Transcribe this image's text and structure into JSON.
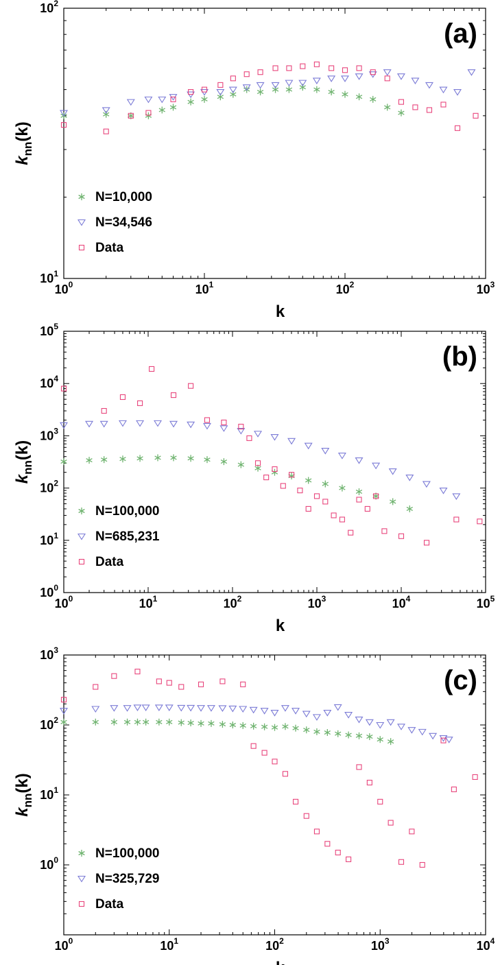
{
  "figure": {
    "ylabel_main": "k",
    "ylabel_sub": "nn",
    "ylabel_tail": "(k)",
    "xlabel": "k",
    "marker_colors": {
      "star": "#6fb36f",
      "triangle": "#7b7bd6",
      "square": "#e8457c"
    }
  },
  "chart_data": [
    {
      "type": "scatter",
      "panel_label": "(a)",
      "xscale": "log",
      "yscale": "log",
      "xlim": [
        1,
        1000
      ],
      "ylim": [
        10,
        100
      ],
      "x_ticks": [
        {
          "base": "10",
          "exp": "0",
          "v": 1
        },
        {
          "base": "10",
          "exp": "1",
          "v": 10
        },
        {
          "base": "10",
          "exp": "2",
          "v": 100
        },
        {
          "base": "10",
          "exp": "3",
          "v": 1000
        }
      ],
      "y_ticks": [
        {
          "base": "10",
          "exp": "1",
          "v": 10
        },
        {
          "base": "10",
          "exp": "2",
          "v": 100
        }
      ],
      "xlabel": "k",
      "legend_position": "lower-left",
      "series": [
        {
          "name": "N=10,000",
          "marker": "star",
          "color": "#6fb36f",
          "x": [
            1,
            2,
            3,
            4,
            5,
            6,
            8,
            10,
            13,
            16,
            20,
            25,
            32,
            40,
            50,
            63,
            80,
            100,
            126,
            158,
            200,
            251
          ],
          "y": [
            40,
            40.5,
            40,
            40,
            42,
            43,
            45,
            46,
            47,
            48,
            50,
            49,
            50,
            50,
            51,
            50,
            49,
            48,
            47,
            46,
            43,
            41
          ]
        },
        {
          "name": "N=34,546",
          "marker": "triangle",
          "color": "#7b7bd6",
          "x": [
            1,
            2,
            3,
            4,
            5,
            6,
            8,
            10,
            13,
            16,
            20,
            25,
            32,
            40,
            50,
            63,
            80,
            100,
            126,
            158,
            200,
            251,
            316,
            398,
            501,
            631,
            794
          ],
          "y": [
            41,
            42,
            45,
            46,
            46,
            47,
            48,
            49,
            49,
            50,
            51,
            52,
            52,
            53,
            53,
            54,
            55,
            55,
            56,
            57,
            58,
            56,
            54,
            52,
            50,
            49,
            58
          ]
        },
        {
          "name": "Data",
          "marker": "square",
          "color": "#e8457c",
          "x": [
            1,
            2,
            3,
            4,
            6,
            8,
            10,
            13,
            16,
            20,
            25,
            32,
            40,
            50,
            63,
            80,
            100,
            126,
            158,
            200,
            251,
            316,
            398,
            501,
            631,
            850
          ],
          "y": [
            37,
            35,
            40,
            41,
            46,
            49,
            50,
            52,
            55,
            57,
            58,
            60,
            60,
            61,
            62,
            60,
            59,
            60,
            58,
            55,
            45,
            43,
            42,
            44,
            36,
            40
          ]
        }
      ]
    },
    {
      "type": "scatter",
      "panel_label": "(b)",
      "xscale": "log",
      "yscale": "log",
      "xlim": [
        1,
        100000
      ],
      "ylim": [
        1,
        100000
      ],
      "x_ticks": [
        {
          "base": "10",
          "exp": "0",
          "v": 1
        },
        {
          "base": "10",
          "exp": "1",
          "v": 10
        },
        {
          "base": "10",
          "exp": "2",
          "v": 100
        },
        {
          "base": "10",
          "exp": "3",
          "v": 1000
        },
        {
          "base": "10",
          "exp": "4",
          "v": 10000
        },
        {
          "base": "10",
          "exp": "5",
          "v": 100000
        }
      ],
      "y_ticks": [
        {
          "base": "10",
          "exp": "0",
          "v": 1
        },
        {
          "base": "10",
          "exp": "1",
          "v": 10
        },
        {
          "base": "10",
          "exp": "2",
          "v": 100
        },
        {
          "base": "10",
          "exp": "3",
          "v": 1000
        },
        {
          "base": "10",
          "exp": "4",
          "v": 10000
        },
        {
          "base": "10",
          "exp": "5",
          "v": 100000
        }
      ],
      "xlabel": "k",
      "legend_position": "lower-left",
      "series": [
        {
          "name": "N=100,000",
          "marker": "star",
          "color": "#6fb36f",
          "x": [
            1,
            2,
            3,
            5,
            8,
            13,
            20,
            32,
            50,
            79,
            126,
            200,
            316,
            501,
            794,
            1259,
            1995,
            3162,
            5012,
            7943,
            12589
          ],
          "y": [
            320,
            340,
            350,
            360,
            370,
            380,
            380,
            370,
            350,
            320,
            280,
            240,
            200,
            170,
            140,
            120,
            100,
            85,
            70,
            55,
            40
          ]
        },
        {
          "name": "N=685,231",
          "marker": "triangle",
          "color": "#7b7bd6",
          "x": [
            1,
            2,
            3,
            5,
            8,
            13,
            20,
            32,
            50,
            79,
            126,
            200,
            316,
            501,
            794,
            1259,
            1995,
            3162,
            5012,
            7943,
            12589,
            19953,
            31623,
            45000
          ],
          "y": [
            1600,
            1700,
            1700,
            1750,
            1750,
            1750,
            1700,
            1650,
            1550,
            1400,
            1250,
            1100,
            950,
            800,
            650,
            520,
            420,
            340,
            270,
            210,
            160,
            120,
            90,
            70
          ]
        },
        {
          "name": "Data",
          "marker": "square",
          "color": "#e8457c",
          "x": [
            1,
            3,
            5,
            8,
            11,
            20,
            32,
            50,
            79,
            126,
            158,
            200,
            251,
            316,
            398,
            501,
            631,
            794,
            1000,
            1259,
            1585,
            1995,
            2512,
            3162,
            3981,
            5012,
            6310,
            10000,
            20000,
            45000,
            85000
          ],
          "y": [
            8000,
            3000,
            5500,
            4200,
            19000,
            6000,
            9000,
            2000,
            1800,
            1500,
            900,
            300,
            160,
            230,
            110,
            180,
            90,
            40,
            70,
            55,
            30,
            25,
            14,
            60,
            40,
            70,
            15,
            12,
            9,
            25,
            23
          ]
        }
      ]
    },
    {
      "type": "scatter",
      "panel_label": "(c)",
      "xscale": "log",
      "yscale": "log",
      "xlim": [
        1,
        10000
      ],
      "ylim": [
        0.1,
        1000
      ],
      "x_ticks": [
        {
          "base": "10",
          "exp": "0",
          "v": 1
        },
        {
          "base": "10",
          "exp": "1",
          "v": 10
        },
        {
          "base": "10",
          "exp": "2",
          "v": 100
        },
        {
          "base": "10",
          "exp": "3",
          "v": 1000
        },
        {
          "base": "10",
          "exp": "4",
          "v": 10000
        }
      ],
      "y_ticks": [
        {
          "base": "10",
          "exp": "0",
          "v": 1
        },
        {
          "base": "10",
          "exp": "1",
          "v": 10
        },
        {
          "base": "10",
          "exp": "2",
          "v": 100
        },
        {
          "base": "10",
          "exp": "3",
          "v": 1000
        }
      ],
      "xlabel": "k",
      "legend_position": "lower-left",
      "series": [
        {
          "name": "N=100,000",
          "marker": "star",
          "color": "#6fb36f",
          "x": [
            1,
            2,
            3,
            4,
            5,
            6,
            8,
            10,
            13,
            16,
            20,
            25,
            32,
            40,
            50,
            63,
            80,
            100,
            126,
            158,
            200,
            251,
            316,
            398,
            501,
            631,
            794,
            1000,
            1259
          ],
          "y": [
            110,
            110,
            110,
            110,
            110,
            110,
            110,
            110,
            108,
            107,
            105,
            105,
            102,
            100,
            98,
            96,
            94,
            92,
            95,
            90,
            85,
            80,
            78,
            75,
            72,
            70,
            68,
            62,
            58
          ]
        },
        {
          "name": "N=325,729",
          "marker": "triangle",
          "color": "#7b7bd6",
          "x": [
            1,
            2,
            3,
            4,
            5,
            6,
            8,
            10,
            13,
            16,
            20,
            25,
            32,
            40,
            50,
            63,
            80,
            100,
            126,
            158,
            200,
            251,
            316,
            398,
            501,
            631,
            794,
            1000,
            1259,
            1585,
            1995,
            2512,
            3162,
            3981,
            4500
          ],
          "y": [
            160,
            170,
            175,
            175,
            178,
            178,
            178,
            178,
            176,
            176,
            175,
            175,
            174,
            172,
            170,
            165,
            160,
            150,
            175,
            160,
            145,
            130,
            150,
            180,
            140,
            120,
            110,
            100,
            110,
            95,
            85,
            80,
            70,
            65,
            62
          ]
        },
        {
          "name": "Data",
          "marker": "square",
          "color": "#e8457c",
          "x": [
            1,
            2,
            3,
            5,
            8,
            10,
            13,
            20,
            32,
            50,
            63,
            80,
            100,
            126,
            158,
            200,
            251,
            316,
            398,
            501,
            631,
            794,
            1000,
            1259,
            1585,
            1995,
            2512,
            3981,
            5012,
            7943
          ],
          "y": [
            230,
            350,
            500,
            580,
            420,
            400,
            350,
            380,
            420,
            380,
            50,
            40,
            30,
            20,
            8,
            5,
            3,
            2,
            1.5,
            1.2,
            25,
            15,
            8,
            4,
            1.1,
            3,
            1,
            60,
            12,
            18
          ]
        }
      ]
    }
  ]
}
